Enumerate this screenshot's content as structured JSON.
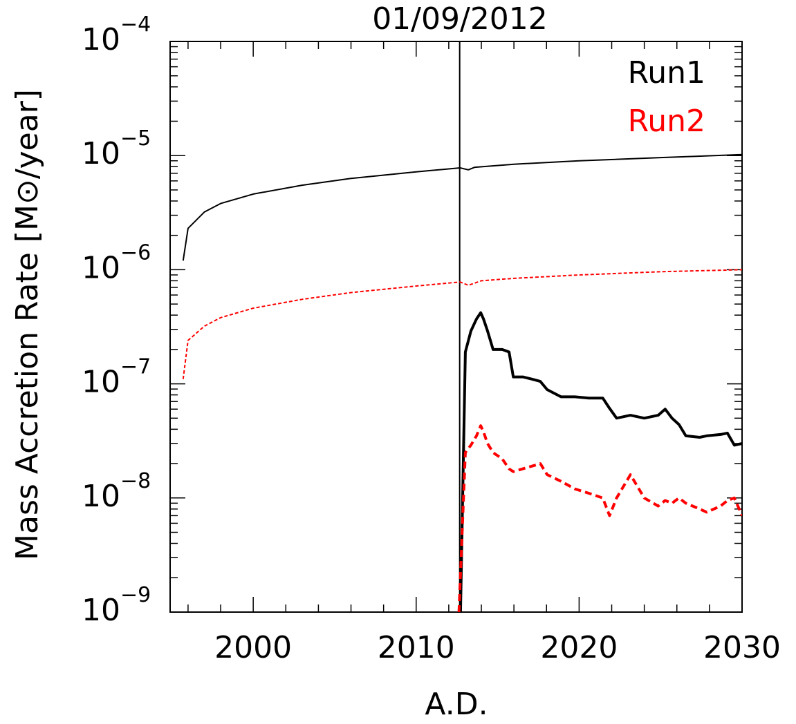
{
  "chart_data": {
    "type": "line",
    "title": "01/09/2012",
    "x_label": "A.D.",
    "y_label": "Mass Accretion Rate [M⊙/year]",
    "log_y": true,
    "xlim": [
      1994.9,
      2030
    ],
    "ylim": [
      1e-09,
      0.0001
    ],
    "xticks": [
      2000,
      2010,
      2020,
      2030
    ],
    "xminor_ticks": [
      1996,
      1998,
      2002,
      2004,
      2006,
      2008,
      2012,
      2014,
      2016,
      2018,
      2022,
      2024,
      2026,
      2028
    ],
    "yticks": [
      {
        "value": 1e-09,
        "base": "10",
        "exponent": "−9"
      },
      {
        "value": 1e-08,
        "base": "10",
        "exponent": "−8"
      },
      {
        "value": 1e-07,
        "base": "10",
        "exponent": "−7"
      },
      {
        "value": 1e-06,
        "base": "10",
        "exponent": "−6"
      },
      {
        "value": 1e-05,
        "base": "10",
        "exponent": "−5"
      },
      {
        "value": 0.0001,
        "base": "10",
        "exponent": "−4"
      }
    ],
    "log_minor": [
      2,
      3,
      4,
      5,
      6,
      7,
      8,
      9
    ],
    "vline": {
      "x": 2012.67
    },
    "legend": "upper right",
    "series": [
      {
        "name": "Run1",
        "color": "#000000",
        "width": 2,
        "dashed": false,
        "x": [
          1995.7,
          1996,
          1997,
          1998,
          2000,
          2003,
          2006,
          2010,
          2012.7,
          2013.2,
          2013.6,
          2016,
          2020,
          2025,
          2030
        ],
        "values": [
          1.2e-06,
          2.3e-06,
          3.2e-06,
          3.8e-06,
          4.6e-06,
          5.5e-06,
          6.3e-06,
          7.2e-06,
          7.8e-06,
          7.5e-06,
          7.9e-06,
          8.4e-06,
          9e-06,
          9.6e-06,
          1.02e-05
        ]
      },
      {
        "name": "Run2",
        "color": "#ff0000",
        "width": 2,
        "dashed": true,
        "x": [
          1995.7,
          1996,
          1997,
          1998,
          2000,
          2003,
          2006,
          2010,
          2012.7,
          2013.2,
          2014,
          2016,
          2020,
          2025,
          2030
        ],
        "values": [
          1.1e-07,
          2.4e-07,
          3.2e-07,
          3.8e-07,
          4.6e-07,
          5.5e-07,
          6.3e-07,
          7.2e-07,
          7.8e-07,
          7.3e-07,
          8e-07,
          8.4e-07,
          9e-07,
          9.6e-07,
          1e-06
        ]
      },
      {
        "name": "Run1",
        "color": "#000000",
        "width": 4,
        "dashed": false,
        "x": [
          2012.72,
          2013.02,
          2013.36,
          2013.7,
          2013.96,
          2014.13,
          2014.38,
          2014.72,
          2015.28,
          2015.7,
          2015.96,
          2016.55,
          2017.11,
          2017.62,
          2018.04,
          2018.89,
          2019.74,
          2020.6,
          2021.45,
          2021.87,
          2022.3,
          2023.15,
          2024.0,
          2024.85,
          2025.28,
          2025.7,
          2026.13,
          2026.55,
          2027.4,
          2027.83,
          2028.68,
          2029.1,
          2029.53,
          2030
        ],
        "values": [
          1e-09,
          1.9e-07,
          2.9e-07,
          3.7e-07,
          4.2e-07,
          3.7e-07,
          2.9e-07,
          2e-07,
          2e-07,
          1.9e-07,
          1.15e-07,
          1.15e-07,
          1.1e-07,
          1.05e-07,
          8.9e-08,
          7.7e-08,
          7.7e-08,
          7.5e-08,
          7.5e-08,
          6.1e-08,
          5e-08,
          5.3e-08,
          5e-08,
          5.3e-08,
          6e-08,
          5e-08,
          4.4e-08,
          3.5e-08,
          3.4e-08,
          3.5e-08,
          3.6e-08,
          3.7e-08,
          2.9e-08,
          3e-08
        ]
      },
      {
        "name": "Run2",
        "color": "#ff0000",
        "width": 4,
        "dashed": true,
        "x": [
          2012.6,
          2013.02,
          2013.36,
          2013.7,
          2013.96,
          2014.13,
          2014.38,
          2014.72,
          2015.28,
          2015.7,
          2015.96,
          2016.55,
          2017.11,
          2017.62,
          2018.04,
          2018.89,
          2019.74,
          2020.6,
          2021.45,
          2021.87,
          2022.3,
          2023.15,
          2024.0,
          2024.85,
          2025.28,
          2025.7,
          2026.13,
          2026.55,
          2027.4,
          2027.83,
          2028.68,
          2029.1,
          2029.53,
          2030
        ],
        "values": [
          8e-10,
          2.5e-08,
          2.9e-08,
          3.5e-08,
          4.3e-08,
          3.8e-08,
          3e-08,
          2.5e-08,
          2.2e-08,
          1.8e-08,
          1.7e-08,
          1.8e-08,
          1.9e-08,
          2e-08,
          1.6e-08,
          1.4e-08,
          1.2e-08,
          1.1e-08,
          1e-08,
          7e-09,
          1e-08,
          1.6e-08,
          1e-08,
          8.5e-09,
          9.5e-09,
          9e-09,
          1e-08,
          9e-09,
          8e-09,
          7.5e-09,
          8.5e-09,
          9.5e-09,
          1e-08,
          7e-09
        ]
      }
    ]
  }
}
